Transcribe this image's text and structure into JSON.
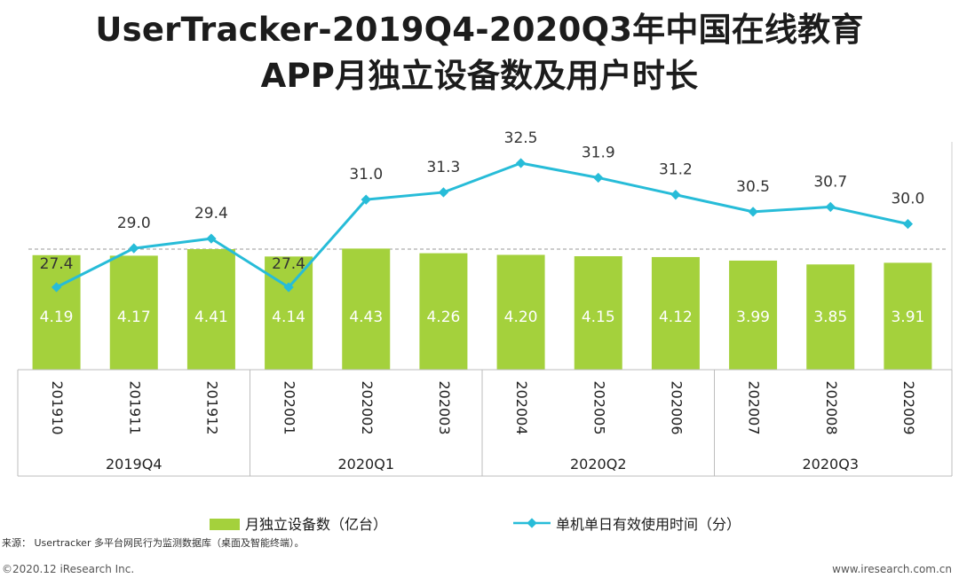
{
  "title_line1": "UserTracker-2019Q4-2020Q3年中国在线教育",
  "title_line2": "APP月独立设备数及用户时长",
  "chart_data": {
    "type": "bar+line",
    "categories": [
      "201910",
      "201911",
      "201912",
      "202001",
      "202002",
      "202003",
      "202004",
      "202005",
      "202006",
      "202007",
      "202008",
      "202009"
    ],
    "quarters": [
      {
        "label": "2019Q4",
        "months": 3
      },
      {
        "label": "2020Q1",
        "months": 3
      },
      {
        "label": "2020Q2",
        "months": 3
      },
      {
        "label": "2020Q3",
        "months": 3
      }
    ],
    "series": [
      {
        "name": "月独立设备数（亿台）",
        "type": "bar",
        "color": "#a4d13c",
        "values": [
          4.19,
          4.17,
          4.41,
          4.14,
          4.43,
          4.26,
          4.2,
          4.15,
          4.12,
          3.99,
          3.85,
          3.91
        ]
      },
      {
        "name": "单机单日有效使用时间（分）",
        "type": "line",
        "color": "#27bcd8",
        "values": [
          27.4,
          29.0,
          29.4,
          27.4,
          31.0,
          31.3,
          32.5,
          31.9,
          31.2,
          30.5,
          30.7,
          30.0
        ]
      }
    ],
    "reference_line": 4.41
  },
  "legend": {
    "bar_label": "月独立设备数（亿台）",
    "line_label": "单机单日有效使用时间（分）"
  },
  "source": "来源：  Usertracker 多平台网民行为监测数据库（桌面及智能终端）。",
  "copyright": "©2020.12 iResearch Inc.",
  "website": "www.iresearch.com.cn"
}
